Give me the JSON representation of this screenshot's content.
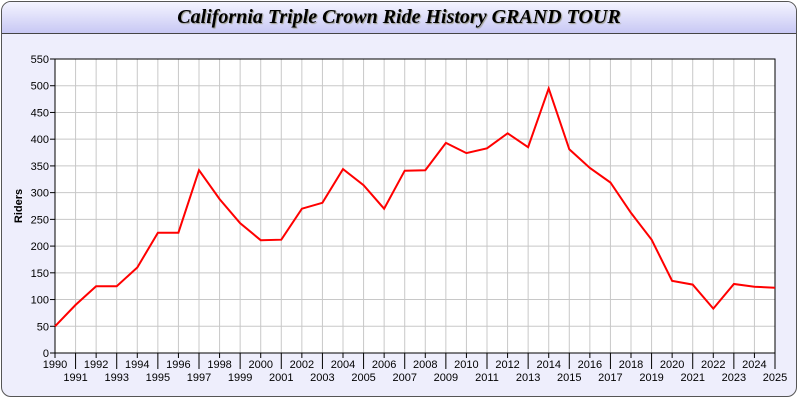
{
  "chart_data": {
    "type": "line",
    "title": "California Triple Crown Ride History GRAND TOUR",
    "xlabel": "",
    "ylabel": "Riders",
    "ylim": [
      0,
      550
    ],
    "yticks": [
      0,
      50,
      100,
      150,
      200,
      250,
      300,
      350,
      400,
      450,
      500,
      550
    ],
    "grid": true,
    "x": [
      1990,
      1991,
      1992,
      1993,
      1994,
      1995,
      1996,
      1997,
      1998,
      1999,
      2000,
      2001,
      2002,
      2003,
      2004,
      2005,
      2006,
      2007,
      2008,
      2009,
      2010,
      2011,
      2012,
      2013,
      2014,
      2015,
      2016,
      2017,
      2018,
      2019,
      2020,
      2021,
      2022,
      2023,
      2024,
      2025
    ],
    "series": [
      {
        "color": "#ff0000",
        "values": [
          50,
          90,
          125,
          125,
          160,
          225,
          225,
          342,
          288,
          243,
          211,
          212,
          270,
          281,
          344,
          314,
          270,
          341,
          342,
          393,
          374,
          383,
          411,
          385,
          495,
          381,
          346,
          319,
          262,
          212,
          135,
          128,
          83,
          129,
          124,
          122
        ]
      }
    ]
  }
}
